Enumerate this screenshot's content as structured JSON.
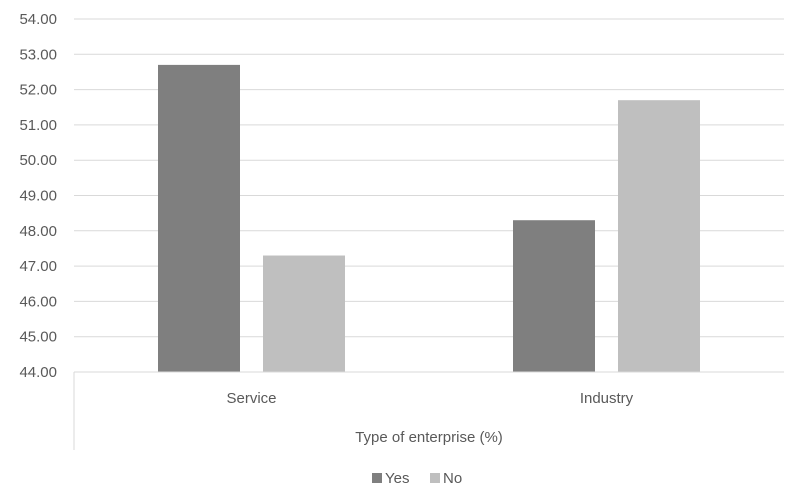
{
  "chart_data": {
    "type": "bar",
    "title": "",
    "xlabel": "Type of enterprise (%)",
    "ylabel": "",
    "categories": [
      "Service",
      "Industry"
    ],
    "series": [
      {
        "name": "Yes",
        "values": [
          52.7,
          48.3
        ],
        "color": "#7f7f7f"
      },
      {
        "name": "No",
        "values": [
          47.3,
          51.7
        ],
        "color": "#bfbfbf"
      }
    ],
    "ylim": [
      44,
      54
    ],
    "ytick_step": 1,
    "ytick_labels": [
      "44.00",
      "45.00",
      "46.00",
      "47.00",
      "48.00",
      "49.00",
      "50.00",
      "51.00",
      "52.00",
      "53.00",
      "54.00"
    ],
    "grid": true,
    "legend": "bottom"
  }
}
